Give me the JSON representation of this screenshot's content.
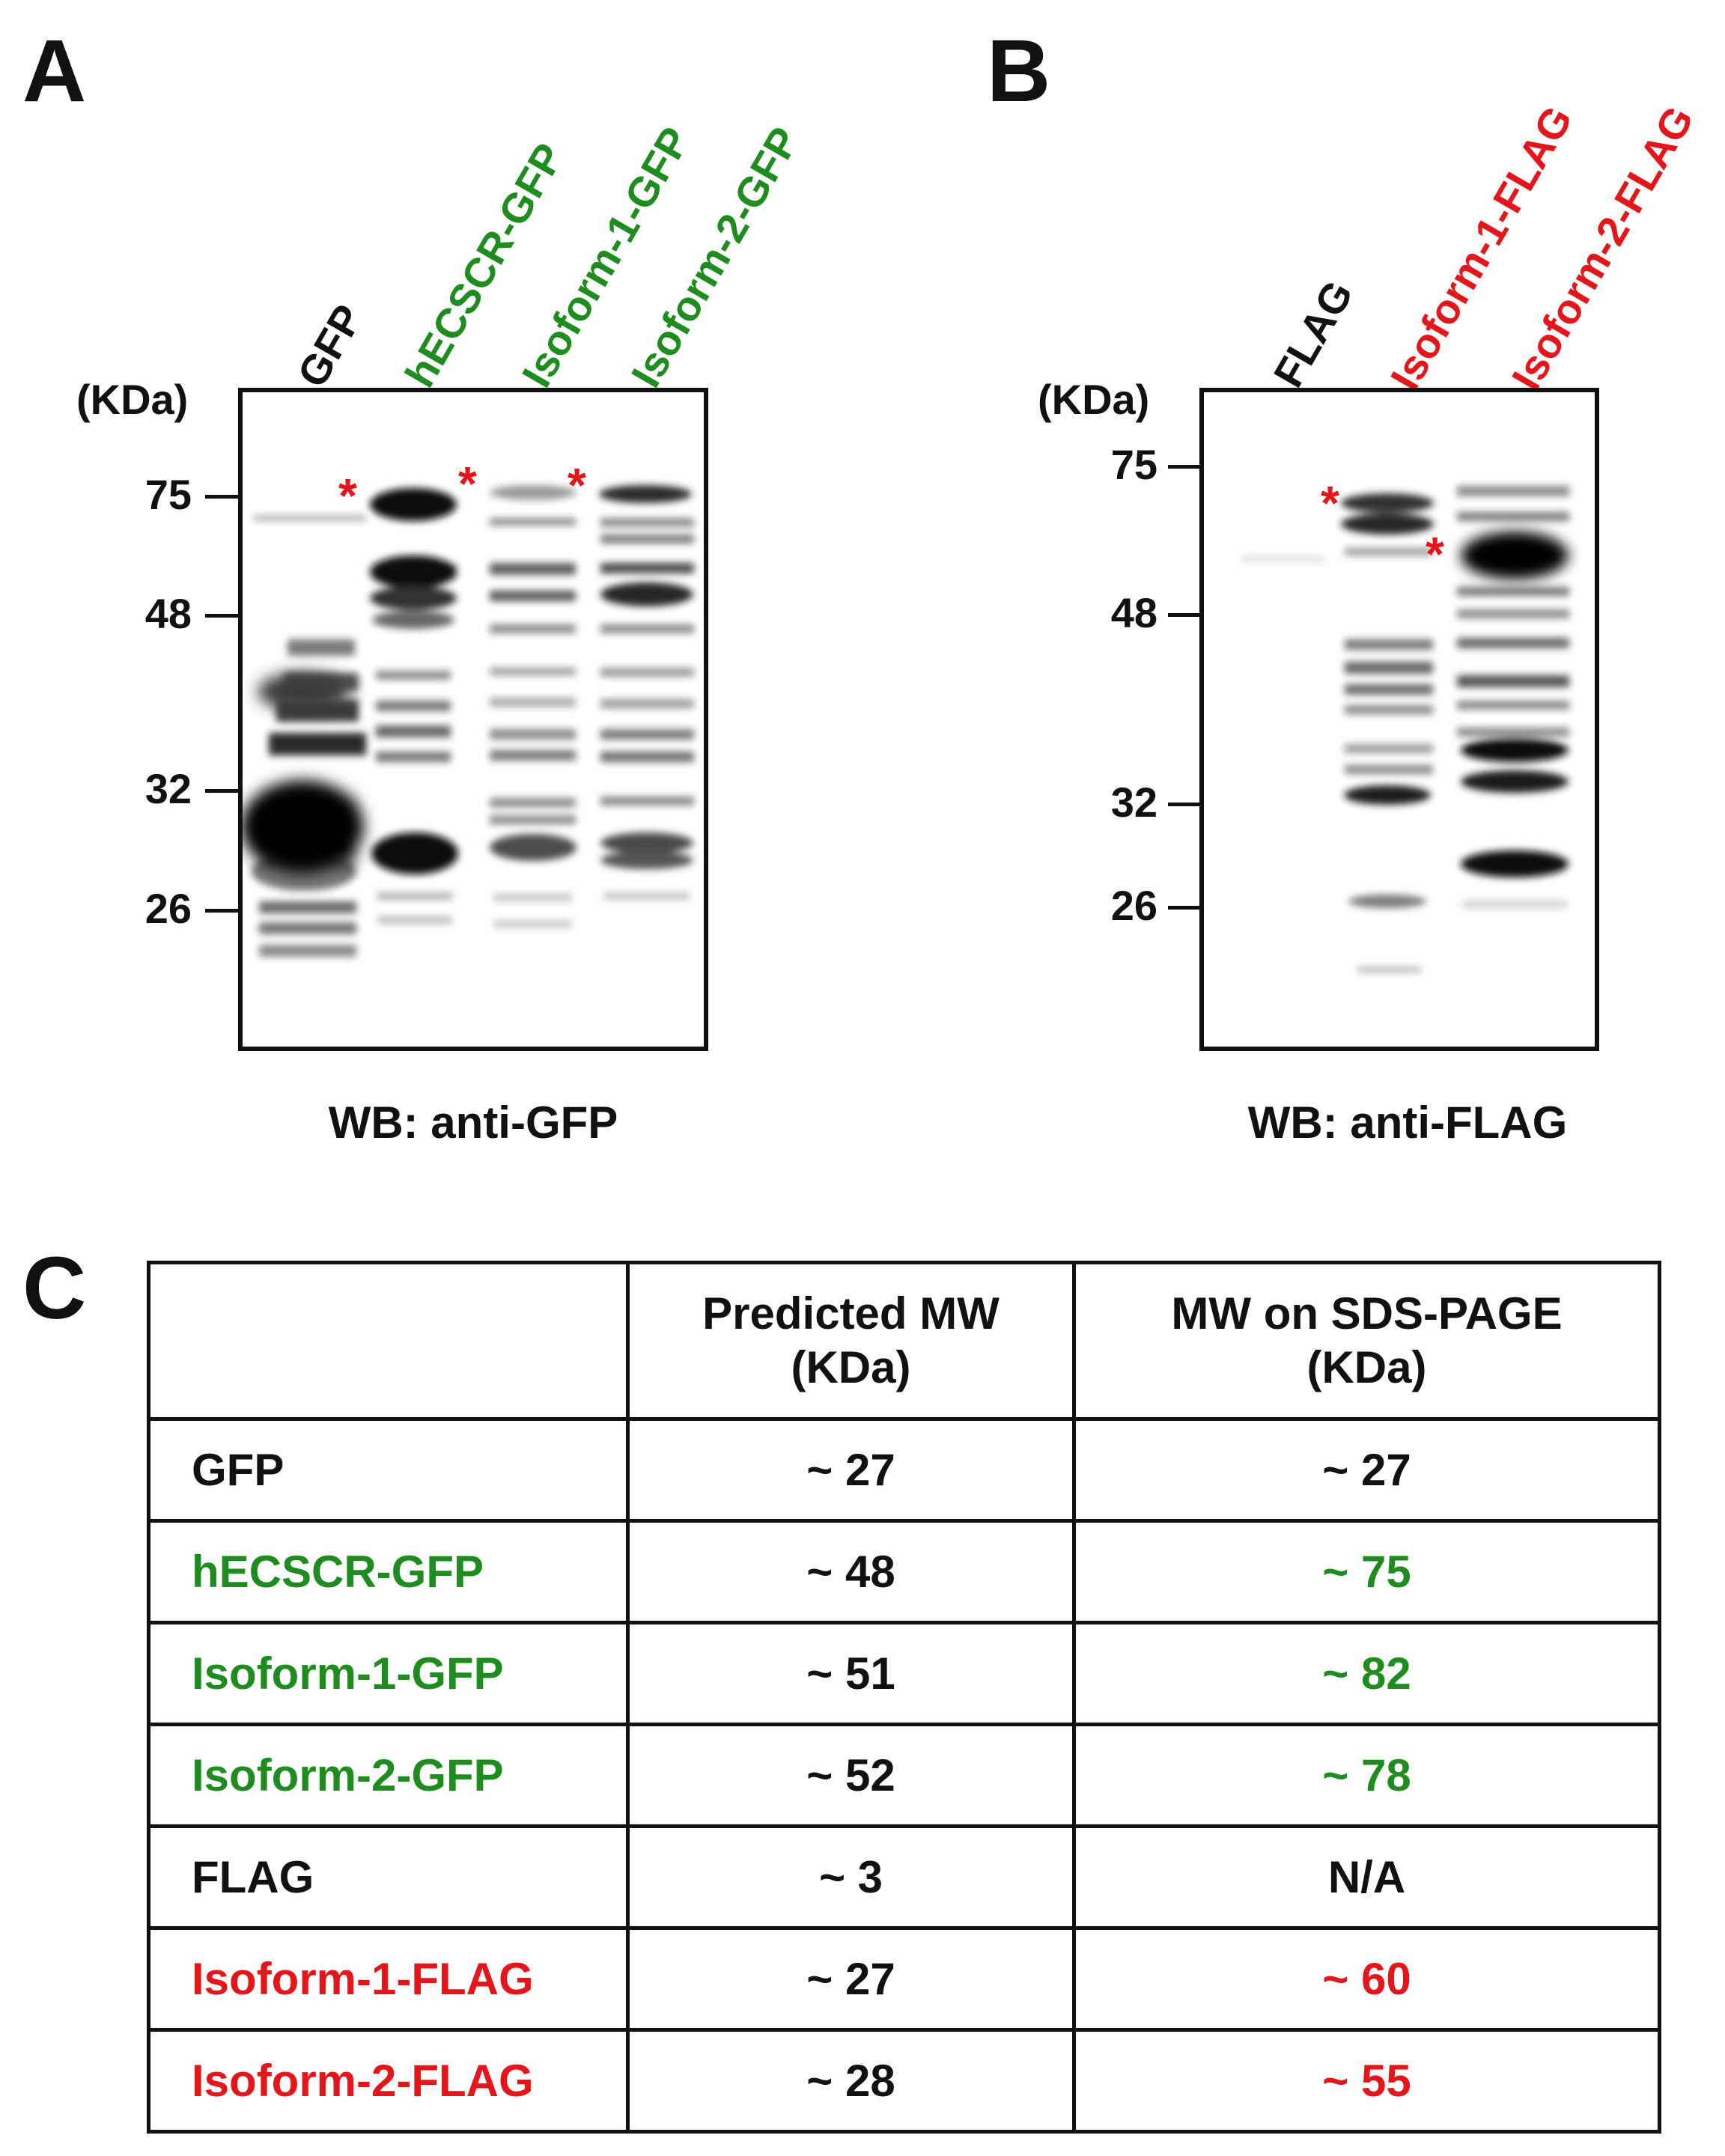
{
  "colors": {
    "black": "#111111",
    "green": "#1f8c1f",
    "red": "#e3161b"
  },
  "panel_a": {
    "letter": "A",
    "unit": "(KDa)",
    "lanes": [
      {
        "label": "GFP",
        "color": "black"
      },
      {
        "label": "hECSCR-GFP",
        "color": "green"
      },
      {
        "label": "Isoform-1-GFP",
        "color": "green"
      },
      {
        "label": "Isoform-2-GFP",
        "color": "green"
      }
    ],
    "markers": [
      "75",
      "48",
      "32",
      "26"
    ],
    "star": "*",
    "caption": "WB: anti-GFP"
  },
  "panel_b": {
    "letter": "B",
    "unit": "(KDa)",
    "lanes": [
      {
        "label": "FLAG",
        "color": "black"
      },
      {
        "label": "Isoform-1-FLAG",
        "color": "red"
      },
      {
        "label": "Isoform-2-FLAG",
        "color": "red"
      }
    ],
    "markers": [
      "75",
      "48",
      "32",
      "26"
    ],
    "star": "*",
    "caption": "WB: anti-FLAG"
  },
  "panel_c": {
    "letter": "C",
    "headers": [
      "",
      "Predicted MW\n(KDa)",
      "MW on SDS-PAGE\n(KDa)"
    ],
    "rows": [
      {
        "name": "GFP",
        "predicted": "~ 27",
        "observed": "~ 27",
        "name_color": "black",
        "observed_color": "black"
      },
      {
        "name": "hECSCR-GFP",
        "predicted": "~ 48",
        "observed": "~ 75",
        "name_color": "green",
        "observed_color": "green"
      },
      {
        "name": "Isoform-1-GFP",
        "predicted": "~ 51",
        "observed": "~ 82",
        "name_color": "green",
        "observed_color": "green"
      },
      {
        "name": "Isoform-2-GFP",
        "predicted": "~ 52",
        "observed": "~ 78",
        "name_color": "green",
        "observed_color": "green"
      },
      {
        "name": "FLAG",
        "predicted": "~ 3",
        "observed": "N/A",
        "name_color": "black",
        "observed_color": "black"
      },
      {
        "name": "Isoform-1-FLAG",
        "predicted": "~ 27",
        "observed": "~ 60",
        "name_color": "red",
        "observed_color": "red"
      },
      {
        "name": "Isoform-2-FLAG",
        "predicted": "~ 28",
        "observed": "~ 55",
        "name_color": "red",
        "observed_color": "red"
      }
    ]
  }
}
